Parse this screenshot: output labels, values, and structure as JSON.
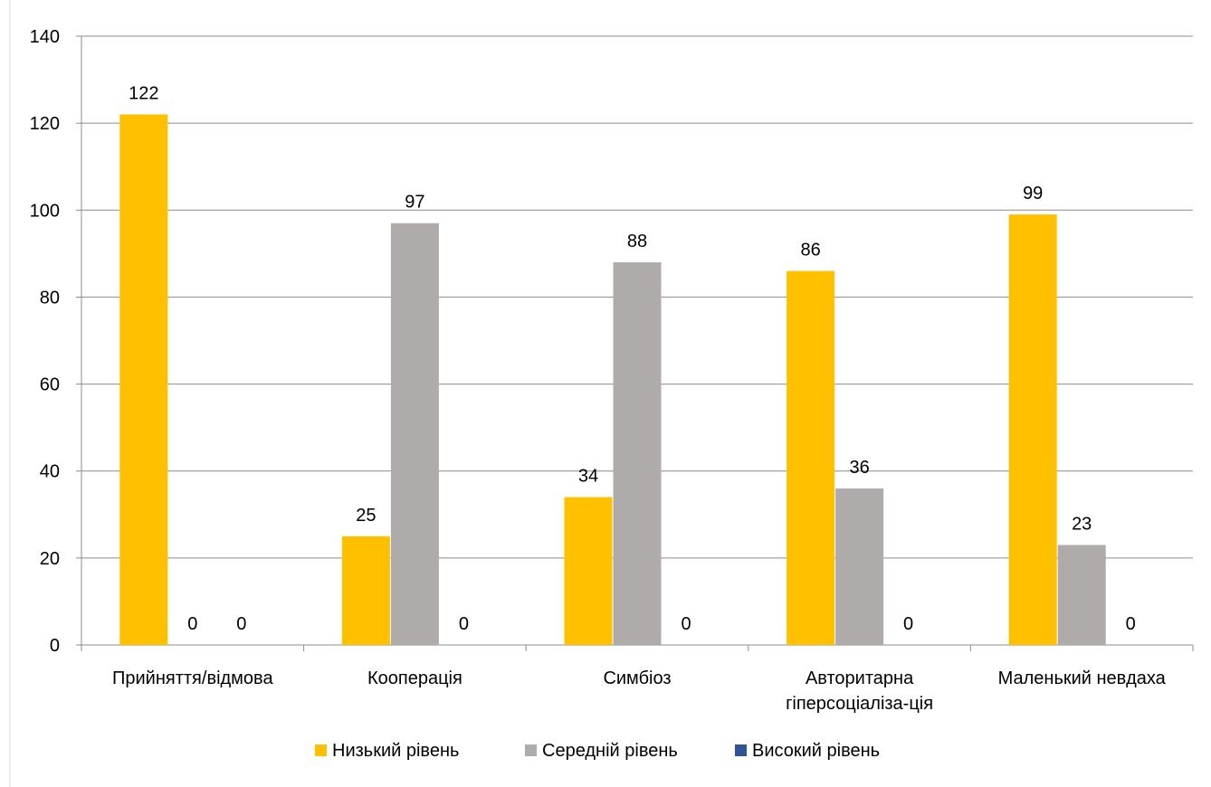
{
  "chart_data": {
    "type": "bar",
    "title": "",
    "xlabel": "",
    "ylabel": "",
    "categories": [
      [
        "Прийняття/відмова"
      ],
      [
        "Кооперація"
      ],
      [
        "Симбіоз"
      ],
      [
        "Авторитарна",
        "гіперсоціаліза-ція"
      ],
      [
        "Маленький невдаха"
      ]
    ],
    "series": [
      {
        "name": "Низький рівень",
        "color": "#FFC000",
        "values": [
          122,
          25,
          34,
          86,
          99
        ]
      },
      {
        "name": "Середній рівень",
        "color": "#AFABAB",
        "values": [
          0,
          97,
          88,
          36,
          23
        ]
      },
      {
        "name": "Високий рівень",
        "color": "#2F5597",
        "values": [
          0,
          0,
          0,
          0,
          0
        ]
      }
    ],
    "ylim": [
      0,
      140
    ],
    "yticks": [
      0,
      20,
      40,
      60,
      80,
      100,
      120,
      140
    ],
    "grid": true,
    "legend_position": "bottom",
    "data_labels": true
  }
}
